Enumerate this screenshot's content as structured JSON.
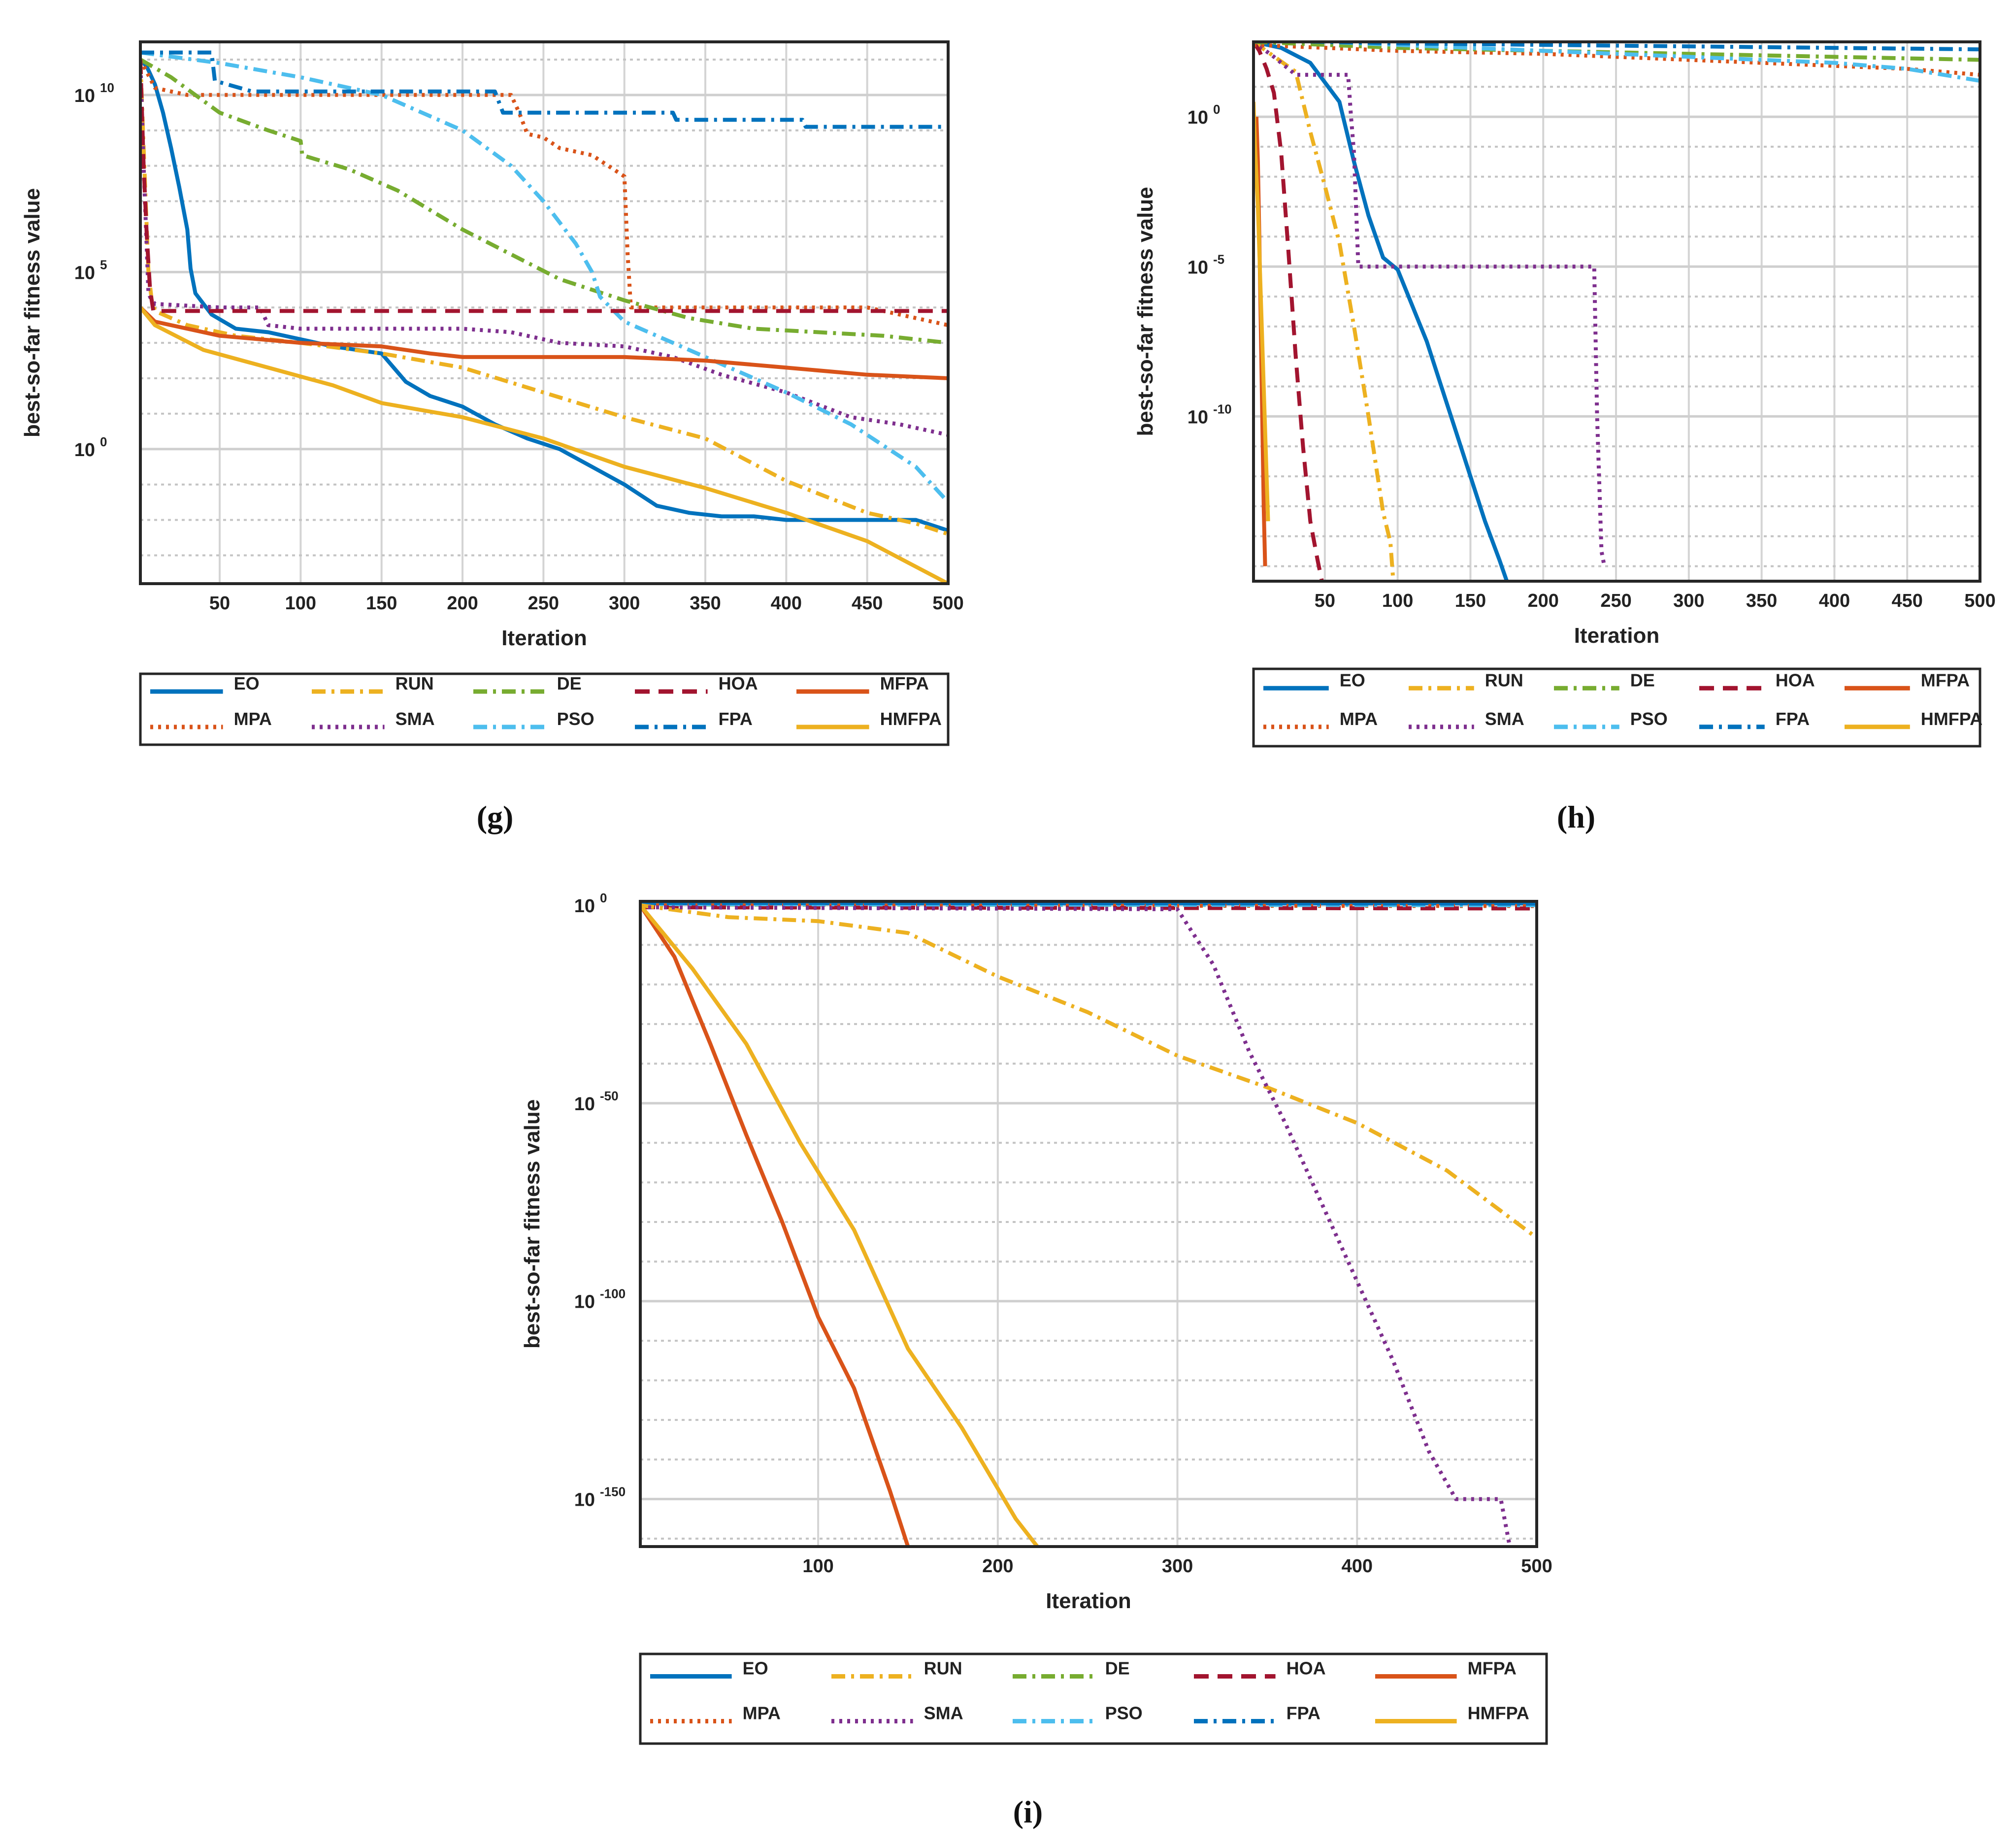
{
  "figure": {
    "captions": [
      "(g)",
      "(h)",
      "(i)"
    ]
  },
  "algorithms": [
    {
      "name": "EO",
      "color": "#0072BD",
      "style": "solid"
    },
    {
      "name": "RUN",
      "color": "#EDB120",
      "style": "dashdot"
    },
    {
      "name": "DE",
      "color": "#77AC30",
      "style": "dashdot"
    },
    {
      "name": "HOA",
      "color": "#A2142F",
      "style": "dash"
    },
    {
      "name": "MFPA",
      "color": "#D95319",
      "style": "solid"
    },
    {
      "name": "MPA",
      "color": "#D95319",
      "style": "dot"
    },
    {
      "name": "SMA",
      "color": "#7E2F8E",
      "style": "dot"
    },
    {
      "name": "PSO",
      "color": "#4DBEEE",
      "style": "dashdot"
    },
    {
      "name": "FPA",
      "color": "#0072BD",
      "style": "dashdot"
    },
    {
      "name": "HMFPA",
      "color": "#EDB120",
      "style": "solid"
    }
  ],
  "chart_data": [
    {
      "id": "g",
      "caption": "(g)",
      "type": "line",
      "xlabel": "Iteration",
      "ylabel": "best-so-far fitness value",
      "yscale": "log",
      "xlim": [
        1,
        500
      ],
      "ylim_exp": [
        -3.8,
        11.5
      ],
      "xticks": [
        50,
        100,
        150,
        200,
        250,
        300,
        350,
        400,
        450,
        500
      ],
      "yticks_major": [
        {
          "exp": "10",
          "base": "10",
          "value": 10
        },
        {
          "exp": "5",
          "base": "10",
          "value": 5
        },
        {
          "exp": "0",
          "base": "10",
          "value": 0
        }
      ],
      "yticks_minor": [
        11,
        9,
        8,
        7,
        6,
        4,
        3,
        2,
        1,
        -1,
        -2,
        -3
      ],
      "series": [
        {
          "name": "EO",
          "x": [
            1,
            5,
            10,
            15,
            20,
            25,
            30,
            32,
            35,
            45,
            60,
            80,
            100,
            120,
            150,
            165,
            180,
            200,
            220,
            240,
            260,
            280,
            300,
            320,
            340,
            360,
            380,
            400,
            420,
            440,
            460,
            480,
            500
          ],
          "log10y": [
            11,
            10.8,
            10.3,
            9.5,
            8.5,
            7.4,
            6.2,
            5.1,
            4.4,
            3.8,
            3.4,
            3.3,
            3.1,
            2.9,
            2.7,
            1.9,
            1.5,
            1.2,
            0.7,
            0.3,
            0.0,
            -0.5,
            -1.0,
            -1.6,
            -1.8,
            -1.9,
            -1.9,
            -2.0,
            -2.0,
            -2.0,
            -2.0,
            -2.0,
            -2.3
          ]
        },
        {
          "name": "MPA",
          "x": [
            1,
            10,
            20,
            30,
            60,
            100,
            150,
            200,
            230,
            235,
            240,
            250,
            260,
            280,
            300,
            302,
            304,
            350,
            400,
            450,
            480,
            500
          ],
          "log10y": [
            11,
            10.2,
            10.1,
            10.0,
            10.0,
            10.0,
            10.0,
            10.0,
            10.0,
            9.5,
            8.9,
            8.8,
            8.5,
            8.3,
            7.7,
            5.5,
            4.0,
            4.0,
            4.0,
            4.0,
            3.7,
            3.5
          ]
        },
        {
          "name": "RUN",
          "x": [
            1,
            3,
            6,
            8,
            10,
            30,
            60,
            100,
            150,
            200,
            250,
            300,
            350,
            400,
            450,
            480,
            500
          ],
          "log10y": [
            11,
            8.5,
            5.0,
            4.2,
            3.9,
            3.5,
            3.2,
            3.0,
            2.7,
            2.3,
            1.6,
            0.9,
            0.3,
            -0.9,
            -1.8,
            -2.1,
            -2.4
          ]
        },
        {
          "name": "SMA",
          "x": [
            1,
            3,
            6,
            8,
            10,
            50,
            75,
            80,
            100,
            150,
            200,
            230,
            260,
            300,
            330,
            360,
            400,
            440,
            470,
            500
          ],
          "log10y": [
            11,
            8.0,
            4.4,
            4.2,
            4.1,
            4.0,
            4.0,
            3.5,
            3.4,
            3.4,
            3.4,
            3.3,
            3.0,
            2.9,
            2.6,
            2.1,
            1.6,
            0.9,
            0.7,
            0.4
          ]
        },
        {
          "name": "DE",
          "x": [
            1,
            20,
            50,
            80,
            100,
            101,
            130,
            160,
            200,
            230,
            260,
            300,
            340,
            380,
            420,
            460,
            500
          ],
          "log10y": [
            11,
            10.5,
            9.5,
            9.0,
            8.7,
            8.3,
            7.9,
            7.3,
            6.2,
            5.5,
            4.8,
            4.2,
            3.7,
            3.4,
            3.3,
            3.2,
            3.0
          ]
        },
        {
          "name": "PSO",
          "x": [
            1,
            50,
            100,
            150,
            200,
            230,
            250,
            270,
            280,
            285,
            300,
            330,
            360,
            400,
            440,
            480,
            500
          ],
          "log10y": [
            11.2,
            10.9,
            10.5,
            10.0,
            9.0,
            8.0,
            7.0,
            5.8,
            5.0,
            4.3,
            3.6,
            3.0,
            2.4,
            1.6,
            0.7,
            -0.5,
            -1.5
          ]
        },
        {
          "name": "HOA",
          "x": [
            1,
            3,
            5,
            7,
            9,
            500
          ],
          "log10y": [
            11,
            8.0,
            6.0,
            4.5,
            3.9,
            3.9
          ]
        },
        {
          "name": "FPA",
          "x": [
            1,
            45,
            47,
            70,
            220,
            225,
            330,
            332,
            410,
            412,
            500
          ],
          "log10y": [
            11.2,
            11.2,
            10.4,
            10.1,
            10.1,
            9.5,
            9.5,
            9.3,
            9.3,
            9.1,
            9.1
          ]
        },
        {
          "name": "MFPA",
          "x": [
            1,
            10,
            50,
            100,
            150,
            180,
            200,
            250,
            300,
            350,
            400,
            450,
            500
          ],
          "log10y": [
            4.0,
            3.6,
            3.2,
            3.0,
            2.9,
            2.7,
            2.6,
            2.6,
            2.6,
            2.5,
            2.3,
            2.1,
            2.0
          ]
        },
        {
          "name": "HMFPA",
          "x": [
            1,
            10,
            40,
            80,
            120,
            150,
            200,
            250,
            300,
            350,
            400,
            450,
            500
          ],
          "log10y": [
            4.0,
            3.5,
            2.8,
            2.3,
            1.8,
            1.3,
            0.9,
            0.3,
            -0.5,
            -1.1,
            -1.8,
            -2.6,
            -3.8
          ]
        }
      ],
      "legend": {
        "rows": 2,
        "placement": "below-plot"
      }
    },
    {
      "id": "h",
      "caption": "(h)",
      "type": "line",
      "xlabel": "Iteration",
      "ylabel": "best-so-far fitness value",
      "yscale": "log",
      "xlim": [
        1,
        500
      ],
      "ylim_exp": [
        -15.5,
        2.5
      ],
      "xticks": [
        50,
        100,
        150,
        200,
        250,
        300,
        350,
        400,
        450,
        500
      ],
      "yticks_major": [
        {
          "exp": "0",
          "base": "10",
          "value": 0
        },
        {
          "exp": "-5",
          "base": "10",
          "value": -5
        },
        {
          "exp": "-10",
          "base": "10",
          "value": -10
        }
      ],
      "yticks_minor": [
        1,
        -1,
        -2,
        -3,
        -4,
        -6,
        -7,
        -8,
        -9,
        -11,
        -12,
        -13,
        -14,
        -15
      ],
      "series": [
        {
          "name": "EO",
          "x": [
            1,
            20,
            40,
            60,
            70,
            80,
            90,
            100,
            110,
            120,
            130,
            140,
            150,
            160,
            170,
            175
          ],
          "log10y": [
            2.5,
            2.3,
            1.8,
            0.5,
            -1.5,
            -3.3,
            -4.7,
            -5.1,
            -6.3,
            -7.5,
            -9.0,
            -10.5,
            -12.0,
            -13.5,
            -14.8,
            -15.5
          ]
        },
        {
          "name": "RUN",
          "x": [
            1,
            30,
            40,
            50,
            60,
            70,
            80,
            90,
            95,
            97
          ],
          "log10y": [
            2.5,
            1.5,
            -0.5,
            -2.3,
            -4.2,
            -7.0,
            -10.0,
            -13.2,
            -14.2,
            -15.5
          ]
        },
        {
          "name": "SMA",
          "x": [
            1,
            15,
            30,
            66,
            68,
            70,
            73,
            180,
            235,
            237,
            240,
            242
          ],
          "log10y": [
            2.5,
            2.0,
            1.4,
            1.4,
            0.0,
            -1.2,
            -5.0,
            -5.0,
            -5.0,
            -10.0,
            -14.5,
            -15.0
          ]
        },
        {
          "name": "HOA",
          "x": [
            1,
            5,
            10,
            15,
            20,
            25,
            30,
            35,
            40,
            45,
            48
          ],
          "log10y": [
            2.5,
            2.2,
            1.6,
            0.8,
            -1.2,
            -4.5,
            -8.0,
            -11.0,
            -13.5,
            -14.8,
            -15.5
          ]
        },
        {
          "name": "MFPA",
          "x": [
            3,
            4,
            5,
            6,
            7,
            8,
            9
          ],
          "log10y": [
            0.0,
            -1.5,
            -4.0,
            -7.0,
            -10.0,
            -13.0,
            -15.0
          ]
        },
        {
          "name": "HMFPA",
          "x": [
            1,
            2,
            4,
            6,
            8,
            10,
            11
          ],
          "log10y": [
            0.5,
            -1.0,
            -3.0,
            -6.0,
            -9.0,
            -12.0,
            -13.5
          ]
        },
        {
          "name": "MPA",
          "x": [
            1,
            100,
            200,
            300,
            400,
            450,
            500
          ],
          "log10y": [
            2.4,
            2.2,
            2.1,
            1.9,
            1.7,
            1.6,
            1.4
          ]
        },
        {
          "name": "DE",
          "x": [
            1,
            100,
            200,
            300,
            400,
            500
          ],
          "log10y": [
            2.5,
            2.3,
            2.2,
            2.1,
            2.0,
            1.9
          ]
        },
        {
          "name": "PSO",
          "x": [
            1,
            100,
            200,
            300,
            400,
            450,
            500
          ],
          "log10y": [
            2.6,
            2.4,
            2.2,
            2.0,
            1.8,
            1.6,
            1.2
          ]
        },
        {
          "name": "FPA",
          "x": [
            1,
            100,
            200,
            300,
            400,
            500
          ],
          "log10y": [
            2.55,
            2.45,
            2.4,
            2.35,
            2.3,
            2.25
          ]
        }
      ],
      "legend": {
        "rows": 2,
        "placement": "below-plot"
      }
    },
    {
      "id": "i",
      "caption": "(i)",
      "type": "line",
      "xlabel": "Iteration",
      "ylabel": "best-so-far fitness value",
      "yscale": "log",
      "xlim": [
        1,
        500
      ],
      "ylim_exp": [
        -162,
        1
      ],
      "xticks": [
        100,
        200,
        300,
        400,
        500
      ],
      "yticks_major": [
        {
          "exp": "0",
          "base": "10",
          "value": 0
        },
        {
          "exp": "-50",
          "base": "10",
          "value": -50
        },
        {
          "exp": "-100",
          "base": "10",
          "value": -100
        },
        {
          "exp": "-150",
          "base": "10",
          "value": -150
        }
      ],
      "yticks_minor": [
        -10,
        -20,
        -30,
        -40,
        -60,
        -70,
        -80,
        -90,
        -110,
        -120,
        -130,
        -140,
        -160
      ],
      "series": [
        {
          "name": "EO",
          "x": [
            1,
            500
          ],
          "log10y": [
            0.5,
            0.5
          ]
        },
        {
          "name": "MPA",
          "x": [
            1,
            500
          ],
          "log10y": [
            0.0,
            -0.2
          ]
        },
        {
          "name": "DE",
          "x": [
            1,
            500
          ],
          "log10y": [
            0.2,
            0.0
          ]
        },
        {
          "name": "HOA",
          "x": [
            1,
            500
          ],
          "log10y": [
            -0.5,
            -0.8
          ]
        },
        {
          "name": "PSO",
          "x": [
            1,
            500
          ],
          "log10y": [
            0.3,
            0.0
          ]
        },
        {
          "name": "FPA",
          "x": [
            1,
            500
          ],
          "log10y": [
            0.6,
            0.4
          ]
        },
        {
          "name": "RUN",
          "x": [
            1,
            50,
            100,
            150,
            200,
            250,
            300,
            350,
            400,
            450,
            500
          ],
          "log10y": [
            0,
            -3,
            -4,
            -7,
            -18,
            -27,
            -38,
            -46,
            -55,
            -67,
            -84
          ]
        },
        {
          "name": "SMA",
          "x": [
            1,
            300,
            320,
            340,
            360,
            380,
            400,
            420,
            440,
            455,
            480,
            485
          ],
          "log10y": [
            -0.5,
            -1,
            -15,
            -37,
            -55,
            -75,
            -95,
            -115,
            -138,
            -150,
            -150,
            -162
          ]
        },
        {
          "name": "MFPA",
          "x": [
            1,
            20,
            40,
            60,
            80,
            100,
            120,
            140,
            150
          ],
          "log10y": [
            0,
            -13,
            -35,
            -58,
            -80,
            -104,
            -122,
            -148,
            -162
          ]
        },
        {
          "name": "HMFPA",
          "x": [
            1,
            30,
            60,
            90,
            120,
            150,
            180,
            210,
            222
          ],
          "log10y": [
            0,
            -16,
            -35,
            -60,
            -82,
            -112,
            -132,
            -155,
            -162
          ]
        }
      ],
      "legend": {
        "rows": 2,
        "placement": "below-plot"
      }
    }
  ]
}
